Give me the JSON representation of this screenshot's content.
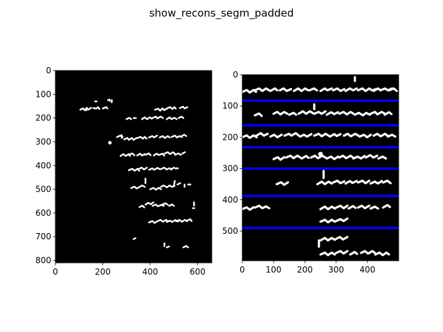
{
  "figure": {
    "title": "show_recons_segm_padded"
  },
  "chart_data": [
    {
      "type": "image",
      "title": "",
      "xlabel": "",
      "ylabel": "",
      "xlim": [
        0,
        660
      ],
      "ylim": [
        810,
        0
      ],
      "xticks": [
        0,
        200,
        400,
        600
      ],
      "yticks": [
        0,
        100,
        200,
        300,
        400,
        500,
        600,
        700,
        800
      ],
      "background": "#000000",
      "ink": "#ffffff",
      "separators": []
    },
    {
      "type": "image",
      "title": "",
      "xlabel": "",
      "ylabel": "",
      "xlim": [
        0,
        500
      ],
      "ylim": [
        595,
        0
      ],
      "xticks": [
        0,
        100,
        200,
        300,
        400
      ],
      "yticks": [
        0,
        100,
        200,
        300,
        400,
        500
      ],
      "background": "#000000",
      "ink": "#ffffff",
      "separator_color": "#0000ff",
      "separators": [
        83,
        162,
        232,
        300,
        388,
        490
      ]
    }
  ]
}
